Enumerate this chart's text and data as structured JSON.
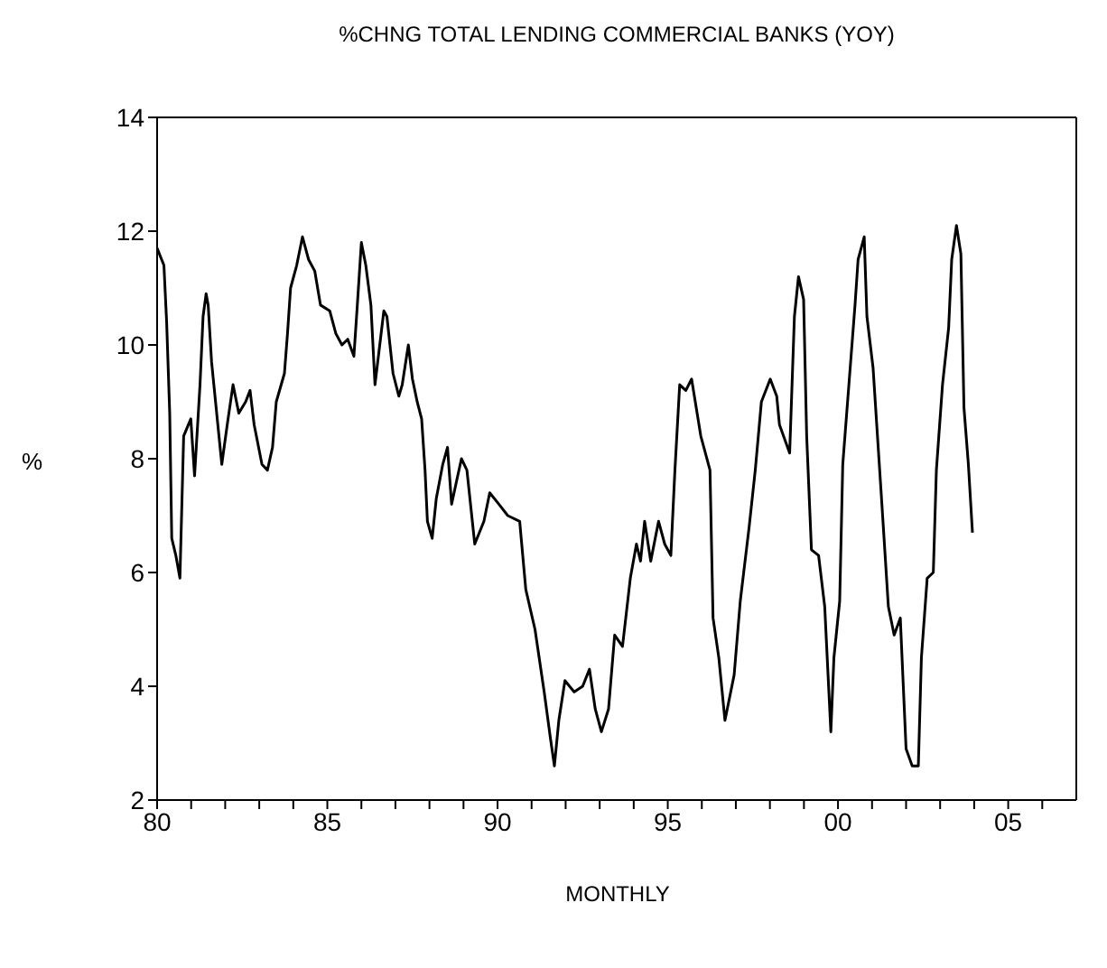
{
  "chart_data": {
    "type": "line",
    "title": "%CHNG TOTAL LENDING  COMMERCIAL BANKS (YOY)",
    "xlabel": "MONTHLY",
    "ylabel": "%",
    "x": [
      1980.0,
      1980.2,
      1980.28,
      1980.37,
      1980.43,
      1980.55,
      1980.67,
      1980.78,
      1980.99,
      1981.1,
      1981.26,
      1981.35,
      1981.44,
      1981.5,
      1981.6,
      1981.8,
      1981.9,
      1982.06,
      1982.23,
      1982.4,
      1982.6,
      1982.73,
      1982.85,
      1983.08,
      1983.24,
      1983.39,
      1983.5,
      1983.74,
      1983.83,
      1983.92,
      1984.1,
      1984.27,
      1984.45,
      1984.63,
      1984.8,
      1985.07,
      1985.25,
      1985.43,
      1985.6,
      1985.78,
      1985.87,
      1986.0,
      1986.13,
      1986.28,
      1986.4,
      1986.52,
      1986.66,
      1986.75,
      1986.93,
      1987.1,
      1987.2,
      1987.38,
      1987.5,
      1987.64,
      1987.77,
      1987.87,
      1987.94,
      1988.08,
      1988.2,
      1988.39,
      1988.53,
      1988.65,
      1988.83,
      1988.94,
      1989.1,
      1989.33,
      1989.6,
      1989.77,
      1990.04,
      1990.3,
      1990.65,
      1990.83,
      1991.1,
      1991.37,
      1991.55,
      1991.67,
      1991.8,
      1991.98,
      1992.25,
      1992.5,
      1992.7,
      1992.87,
      1993.05,
      1993.26,
      1993.44,
      1993.67,
      1993.9,
      1994.08,
      1994.2,
      1994.32,
      1994.5,
      1994.73,
      1994.91,
      1995.09,
      1995.21,
      1995.35,
      1995.53,
      1995.7,
      1995.97,
      1996.24,
      1996.33,
      1996.5,
      1996.68,
      1996.95,
      1997.13,
      1997.39,
      1997.57,
      1997.75,
      1998.01,
      1998.2,
      1998.28,
      1998.58,
      1998.72,
      1998.84,
      1998.99,
      1999.08,
      1999.22,
      1999.43,
      1999.61,
      1999.79,
      1999.88,
      2000.05,
      2000.14,
      2000.32,
      2000.5,
      2000.59,
      2000.77,
      2000.85,
      2001.03,
      2001.3,
      2001.48,
      2001.65,
      2001.83,
      2002.0,
      2002.18,
      2002.36,
      2002.45,
      2002.62,
      2002.8,
      2002.89,
      2003.07,
      2003.25,
      2003.34,
      2003.48,
      2003.61,
      2003.7,
      2003.83,
      2003.95
    ],
    "series": [
      {
        "color": "#000000",
        "values": [
          11.7,
          11.4,
          10.4,
          8.8,
          6.6,
          6.3,
          5.9,
          8.4,
          8.7,
          7.7,
          9.3,
          10.5,
          10.9,
          10.7,
          9.7,
          8.5,
          7.9,
          8.6,
          9.3,
          8.8,
          9.0,
          9.2,
          8.6,
          7.9,
          7.8,
          8.2,
          9.0,
          9.5,
          10.2,
          11.0,
          11.4,
          11.9,
          11.5,
          11.3,
          10.7,
          10.6,
          10.2,
          10.0,
          10.1,
          9.8,
          10.6,
          11.8,
          11.4,
          10.7,
          9.3,
          9.9,
          10.6,
          10.5,
          9.5,
          9.1,
          9.3,
          10.0,
          9.4,
          9.0,
          8.7,
          7.8,
          6.9,
          6.6,
          7.3,
          7.9,
          8.2,
          7.2,
          7.7,
          8.0,
          7.8,
          6.5,
          6.9,
          7.4,
          7.2,
          7.0,
          6.9,
          5.7,
          5.0,
          3.9,
          3.1,
          2.6,
          3.4,
          4.1,
          3.9,
          4.0,
          4.3,
          3.6,
          3.2,
          3.6,
          4.9,
          4.7,
          5.9,
          6.5,
          6.2,
          6.9,
          6.2,
          6.9,
          6.5,
          6.3,
          7.8,
          9.3,
          9.2,
          9.4,
          8.4,
          7.8,
          5.2,
          4.5,
          3.4,
          4.2,
          5.5,
          6.8,
          7.8,
          9.0,
          9.4,
          9.1,
          8.6,
          8.1,
          10.5,
          11.2,
          10.8,
          8.4,
          6.4,
          6.3,
          5.4,
          3.2,
          4.5,
          5.5,
          7.9,
          9.3,
          10.7,
          11.5,
          11.9,
          10.5,
          9.6,
          7.1,
          5.4,
          4.9,
          5.2,
          2.9,
          2.6,
          2.6,
          4.5,
          5.9,
          6.0,
          7.8,
          9.3,
          10.3,
          11.5,
          12.1,
          11.6,
          8.9,
          7.9,
          6.7
        ]
      }
    ],
    "xlim": [
      1980,
      2007
    ],
    "xticks": [
      {
        "value": 1980,
        "label": "80"
      },
      {
        "value": 1981,
        "label": null
      },
      {
        "value": 1982,
        "label": null
      },
      {
        "value": 1983,
        "label": null
      },
      {
        "value": 1984,
        "label": null
      },
      {
        "value": 1985,
        "label": "85"
      },
      {
        "value": 1986,
        "label": null
      },
      {
        "value": 1987,
        "label": null
      },
      {
        "value": 1988,
        "label": null
      },
      {
        "value": 1989,
        "label": null
      },
      {
        "value": 1990,
        "label": "90"
      },
      {
        "value": 1991,
        "label": null
      },
      {
        "value": 1992,
        "label": null
      },
      {
        "value": 1993,
        "label": null
      },
      {
        "value": 1994,
        "label": null
      },
      {
        "value": 1995,
        "label": "95"
      },
      {
        "value": 1996,
        "label": null
      },
      {
        "value": 1997,
        "label": null
      },
      {
        "value": 1998,
        "label": null
      },
      {
        "value": 1999,
        "label": null
      },
      {
        "value": 2000,
        "label": "00"
      },
      {
        "value": 2001,
        "label": null
      },
      {
        "value": 2002,
        "label": null
      },
      {
        "value": 2003,
        "label": null
      },
      {
        "value": 2004,
        "label": null
      },
      {
        "value": 2005,
        "label": "05"
      },
      {
        "value": 2006,
        "label": null
      }
    ],
    "ylim": [
      2,
      14
    ],
    "yticks": [
      2,
      4,
      6,
      8,
      10,
      12,
      14
    ],
    "line_style": "solid"
  }
}
